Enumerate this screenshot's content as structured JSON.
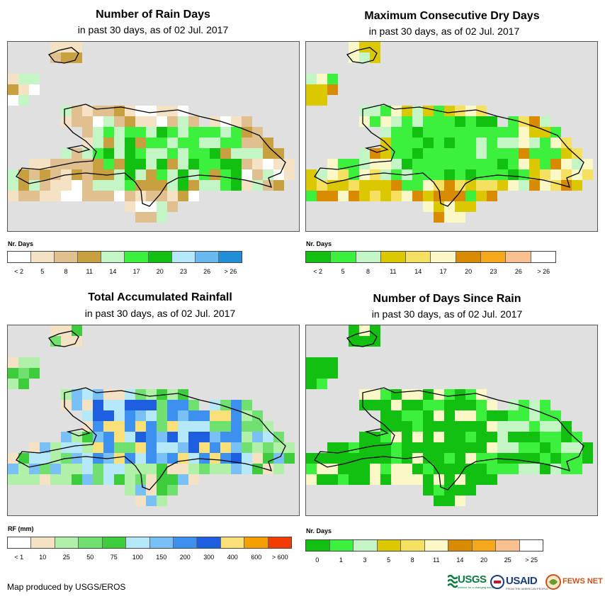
{
  "panels": [
    {
      "title": "Number of Rain Days",
      "subtitle": "in past 30 days, as of 02 Jul. 2017",
      "legend": {
        "title": "Nr. Days",
        "labels": [
          "< 2",
          "5",
          "8",
          "11",
          "14",
          "17",
          "20",
          "23",
          "26",
          "> 26"
        ],
        "colors": [
          "#ffffff",
          "#f5e1c3",
          "#dfc08e",
          "#c9a040",
          "#c3f5c5",
          "#3ef03e",
          "#12c012",
          "#b5e8f8",
          "#6ab8f0",
          "#1e8fd8"
        ]
      }
    },
    {
      "title": "Maximum Consecutive Dry Days",
      "subtitle": "in past 30 days, as of 02 Jul. 2017",
      "legend": {
        "title": "Nr. Days",
        "labels": [
          "< 2",
          "5",
          "8",
          "11",
          "14",
          "17",
          "20",
          "23",
          "26",
          "> 26"
        ],
        "colors": [
          "#12c012",
          "#3ef03e",
          "#c3f5c5",
          "#dcc800",
          "#f5e060",
          "#fbf8c8",
          "#d88a00",
          "#f5a81a",
          "#fbc090",
          "#ffffff"
        ]
      }
    },
    {
      "title": "Total Accumulated Rainfall",
      "subtitle": "in past 30 days, as of 02 Jul. 2017",
      "legend": {
        "title": "RF (mm)",
        "labels": [
          "< 1",
          "10",
          "25",
          "50",
          "75",
          "100",
          "150",
          "200",
          "300",
          "400",
          "600",
          "> 600"
        ],
        "colors": [
          "#ffffff",
          "#f5e1c3",
          "#b0f0a8",
          "#70e070",
          "#3ccc3c",
          "#b5e8f8",
          "#78c0f5",
          "#3c90f0",
          "#1e5fe0",
          "#fbe078",
          "#f5a000",
          "#f53c00"
        ]
      }
    },
    {
      "title": "Number of Days Since Rain",
      "subtitle": "in past 30 days, as of 02 Jul. 2017",
      "legend": {
        "title": "Nr. Days",
        "labels": [
          "0",
          "1",
          "3",
          "5",
          "8",
          "11",
          "14",
          "20",
          "25",
          "> 25"
        ],
        "colors": [
          "#12c012",
          "#3ef03e",
          "#c3f5c5",
          "#dcc800",
          "#f5e060",
          "#fbf8c8",
          "#d88a00",
          "#f5a81a",
          "#fbc090",
          "#ffffff"
        ]
      }
    }
  ],
  "footer": "Map produced by USGS/EROS",
  "logos": {
    "usgs": "USGS",
    "usgs_tagline": "science for a changing world",
    "usaid": "USAID",
    "usaid_tagline": "FROM THE AMERICAN PEOPLE",
    "fews": "FEWS NET"
  },
  "colors": {
    "map_background": "#e0e0e0",
    "coastline": "#000000"
  }
}
